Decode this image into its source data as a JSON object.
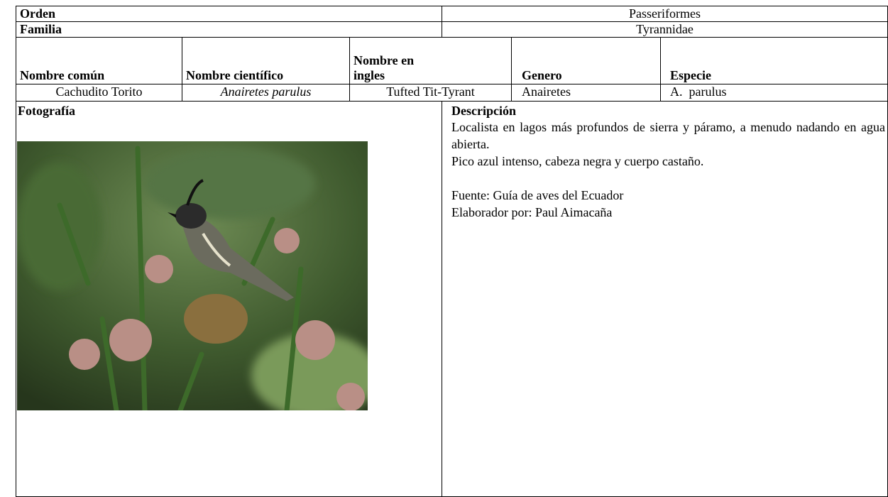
{
  "header": {
    "rows": [
      {
        "label": "Orden",
        "value": "Passeriformes"
      },
      {
        "label": "Familia",
        "value": "Tyrannidae"
      }
    ]
  },
  "table": {
    "columns": [
      "Nombre común",
      "Nombre científico",
      "Nombre en ingles",
      "Genero",
      "Especie"
    ],
    "row": [
      "Cachudito Torito",
      "Anairetes parulus",
      "Tufted Tit-Tyrant",
      "Anairetes",
      "A.  parulus"
    ]
  },
  "photo": {
    "label": "Fotografía"
  },
  "description": {
    "title": "Descripción",
    "paragraphs": [
      "Localista en lagos más profundos de sierra y páramo, a menudo nadando en agua abierta.",
      "Pico azul intenso, cabeza negra y cuerpo castaño.",
      "Fuente: Guía de aves del Ecuador",
      "Elaborador por: Paul Aimacaña"
    ]
  }
}
